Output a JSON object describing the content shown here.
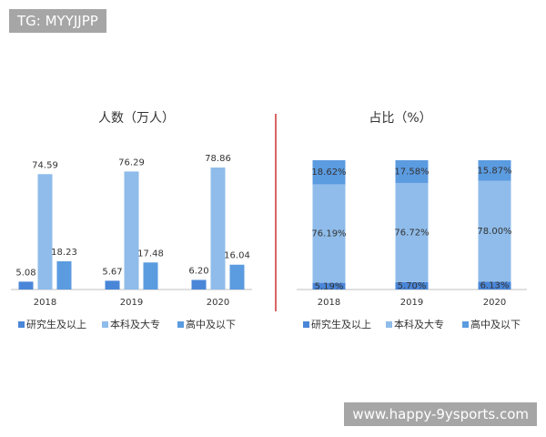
{
  "chart_data": [
    {
      "type": "bar",
      "title": "人数（万人）",
      "categories": [
        "2018",
        "2019",
        "2020"
      ],
      "series": [
        {
          "name": "研究生及以上",
          "color": "#4a86d8",
          "values": [
            5.08,
            5.67,
            6.2
          ],
          "value_labels": [
            "5.08",
            "5.67",
            "6.20"
          ]
        },
        {
          "name": "本科及大专",
          "color": "#8fbcea",
          "values": [
            74.59,
            76.29,
            78.86
          ]
        },
        {
          "name": "高中及以下",
          "color": "#5b9be0",
          "values": [
            18.23,
            17.48,
            16.04
          ]
        }
      ]
    },
    {
      "type": "stacked-bar",
      "title": "占比（%）",
      "categories": [
        "2018",
        "2019",
        "2020"
      ],
      "series": [
        {
          "name": "研究生及以上",
          "color": "#4a86d8",
          "values": [
            5.19,
            5.7,
            6.13
          ],
          "value_labels": [
            "5.19%",
            "5.70%",
            "6.13%"
          ]
        },
        {
          "name": "本科及大专",
          "color": "#8fbcea",
          "values": [
            76.19,
            76.72,
            78.0
          ],
          "value_labels": [
            "76.19%",
            "76.72%",
            "78.00%"
          ]
        },
        {
          "name": "高中及以下",
          "color": "#5b9be0",
          "values": [
            18.62,
            17.58,
            15.87
          ],
          "value_labels": [
            "18.62%",
            "17.58%",
            "15.87%"
          ]
        }
      ]
    }
  ],
  "watermarks": {
    "top": "TG: MYYJJPP",
    "bottom": "www.happy-9ysports.com"
  }
}
